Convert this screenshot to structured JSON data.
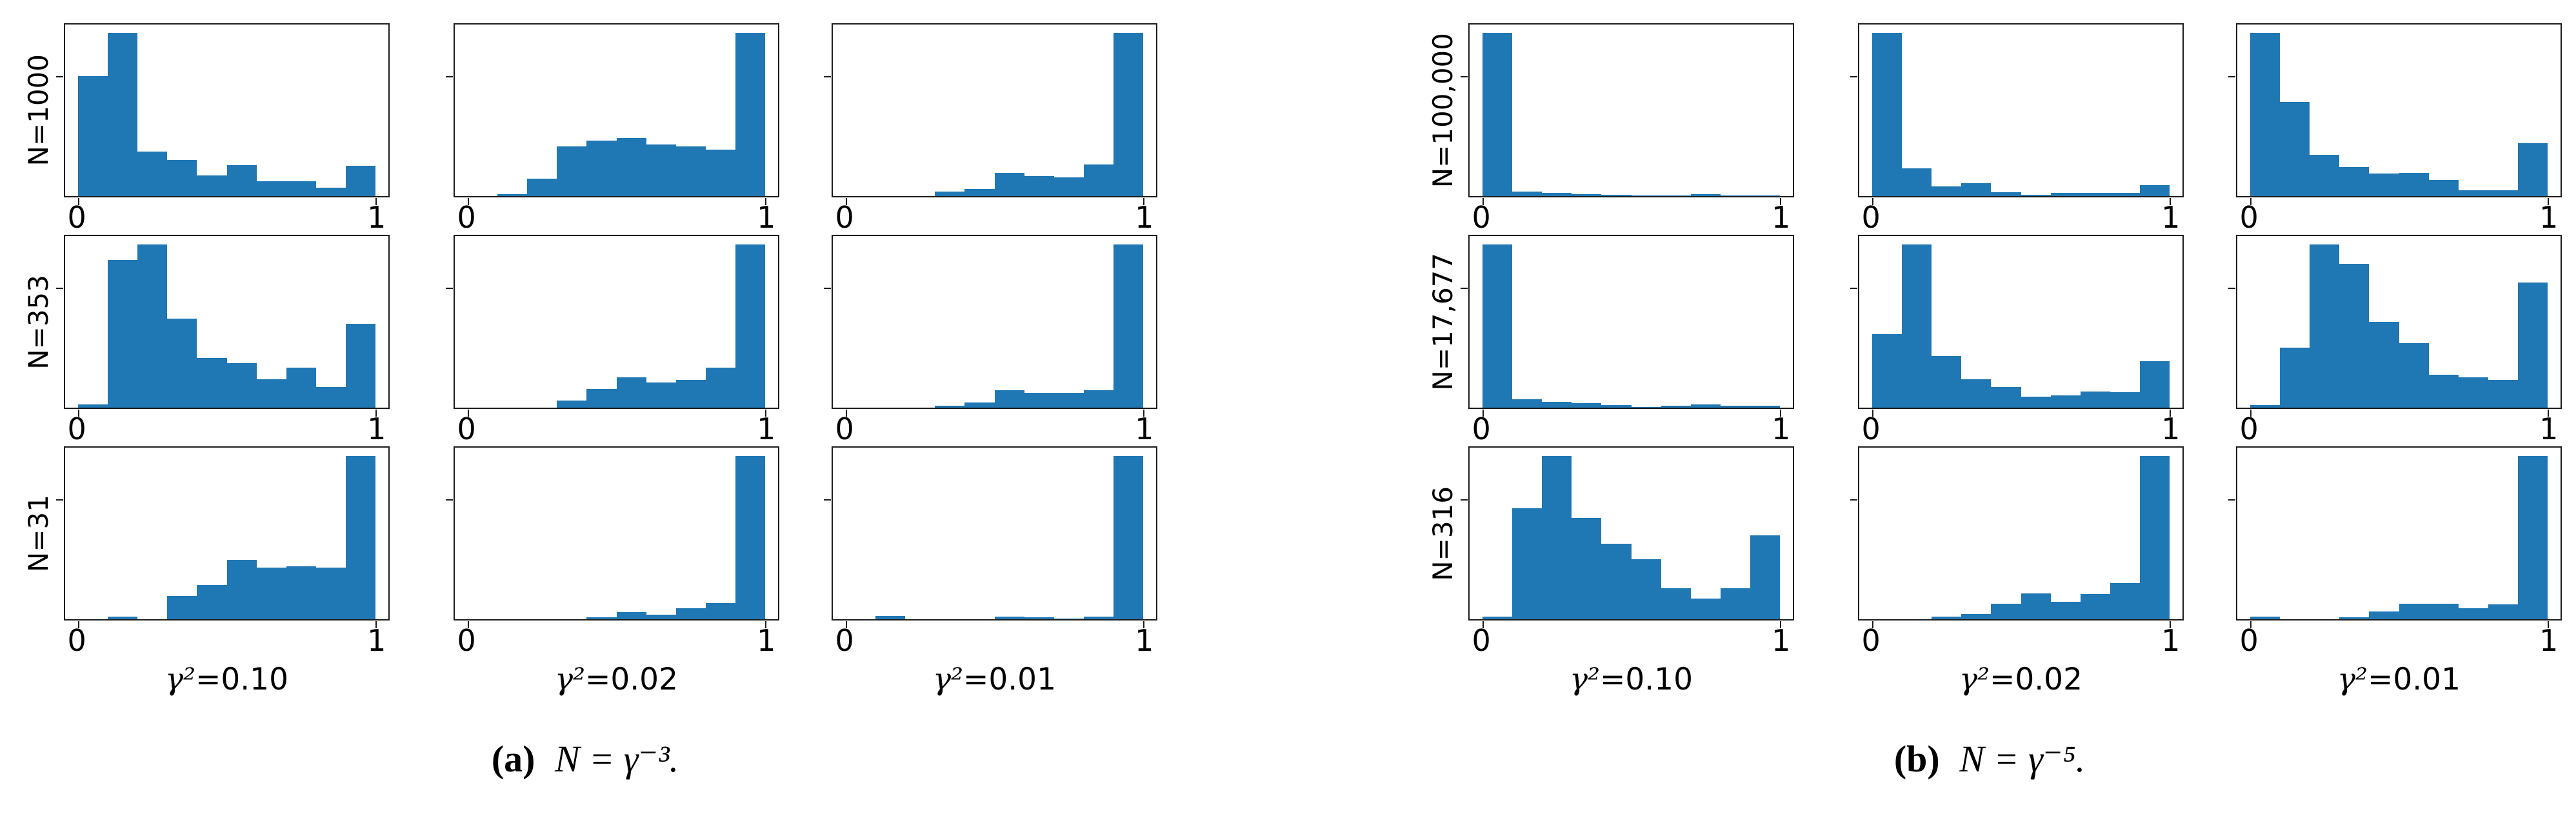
{
  "chart_data": {
    "type": "bar",
    "subtype": "histogram-grid",
    "layout": "two panels, each a 3x3 grid of 10-bin histograms",
    "bins": 10,
    "x_range": [
      0,
      1
    ],
    "x_tick_labels": [
      "0",
      "1"
    ],
    "y_tick_labels": [],
    "ylabel": "",
    "xlabel": "",
    "bar_color": "#1f77b4",
    "axis_color": "#1c1c1c",
    "note": "bar heights are fractions of subplot height; y axes are unlabeled",
    "panels": [
      {
        "caption": {
          "index": "(a)",
          "formula": "N = γ⁻³."
        },
        "columns": [
          {
            "symbol": "γ²",
            "value": "=0.10"
          },
          {
            "symbol": "γ²",
            "value": "=0.02"
          },
          {
            "symbol": "γ²",
            "value": "=0.01"
          }
        ],
        "rows": [
          {
            "label": "N=1000",
            "histograms": [
              [
                0.7,
                0.95,
                0.26,
                0.21,
                0.12,
                0.18,
                0.085,
                0.085,
                0.05,
                0.175
              ],
              [
                0,
                0.01,
                0.1,
                0.29,
                0.325,
                0.34,
                0.3,
                0.29,
                0.27,
                0.95
              ],
              [
                0,
                0,
                0,
                0.025,
                0.04,
                0.135,
                0.115,
                0.11,
                0.185,
                0.95
              ]
            ]
          },
          {
            "label": "N=353",
            "histograms": [
              [
                0.02,
                0.86,
                0.95,
                0.52,
                0.29,
                0.26,
                0.165,
                0.235,
                0.12,
                0.49
              ],
              [
                0,
                0,
                0,
                0.04,
                0.11,
                0.175,
                0.145,
                0.16,
                0.235,
                0.95
              ],
              [
                0,
                0,
                0,
                0.01,
                0.03,
                0.1,
                0.085,
                0.085,
                0.1,
                0.95
              ]
            ]
          },
          {
            "label": "N=31",
            "histograms": [
              [
                0,
                0.015,
                0,
                0.135,
                0.2,
                0.345,
                0.3,
                0.31,
                0.3,
                0.95
              ],
              [
                0,
                0,
                0,
                0,
                0.01,
                0.04,
                0.025,
                0.065,
                0.095,
                0.95
              ],
              [
                0,
                0.02,
                0,
                0,
                0,
                0.015,
                0.01,
                0.005,
                0.015,
                0.95
              ]
            ]
          }
        ]
      },
      {
        "caption": {
          "index": "(b)",
          "formula": "N = γ⁻⁵."
        },
        "columns": [
          {
            "symbol": "γ²",
            "value": "=0.10"
          },
          {
            "symbol": "γ²",
            "value": "=0.02"
          },
          {
            "symbol": "γ²",
            "value": "=0.01"
          }
        ],
        "rows": [
          {
            "label": "N=100,000",
            "histograms": [
              [
                0.95,
                0.028,
                0.02,
                0.013,
                0.008,
                0.005,
                0.005,
                0.01,
                0.002,
                0.002
              ],
              [
                0.95,
                0.16,
                0.055,
                0.075,
                0.022,
                0.008,
                0.018,
                0.018,
                0.018,
                0.065
              ],
              [
                0.95,
                0.55,
                0.24,
                0.17,
                0.13,
                0.135,
                0.095,
                0.035,
                0.035,
                0.31
              ]
            ]
          },
          {
            "label": "N=17,677",
            "histograms": [
              [
                0.95,
                0.05,
                0.035,
                0.025,
                0.015,
                0.003,
                0.01,
                0.018,
                0.01,
                0.01
              ],
              [
                0.43,
                0.95,
                0.3,
                0.165,
                0.12,
                0.065,
                0.07,
                0.095,
                0.09,
                0.27
              ],
              [
                0.015,
                0.35,
                0.95,
                0.84,
                0.5,
                0.375,
                0.19,
                0.175,
                0.16,
                0.73
              ]
            ]
          },
          {
            "label": "N=316",
            "histograms": [
              [
                0.015,
                0.645,
                0.95,
                0.59,
                0.44,
                0.35,
                0.18,
                0.12,
                0.18,
                0.49
              ],
              [
                0,
                0,
                0.015,
                0.03,
                0.09,
                0.15,
                0.1,
                0.145,
                0.21,
                0.95
              ],
              [
                0.015,
                0,
                0,
                0.01,
                0.045,
                0.09,
                0.09,
                0.065,
                0.085,
                0.95
              ]
            ]
          }
        ]
      }
    ]
  }
}
